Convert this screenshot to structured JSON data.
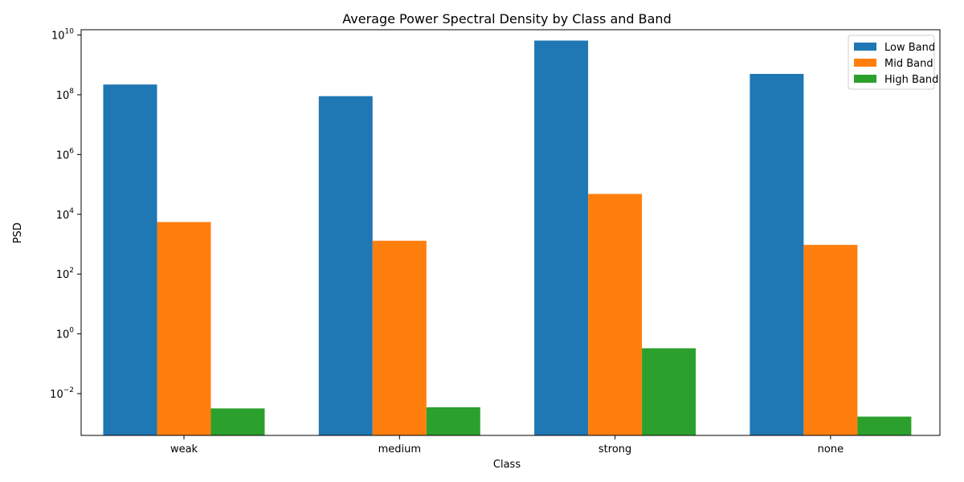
{
  "chart_data": {
    "type": "bar",
    "title": "Average Power Spectral Density by Class and Band",
    "xlabel": "Class",
    "ylabel": "PSD",
    "yscale": "log",
    "ylim": [
      0.0004,
      15000000000
    ],
    "yticks": [
      {
        "value": 0.01,
        "base": "10",
        "exp": "−2"
      },
      {
        "value": 1,
        "base": "10",
        "exp": "0"
      },
      {
        "value": 100,
        "base": "10",
        "exp": "2"
      },
      {
        "value": 10000,
        "base": "10",
        "exp": "4"
      },
      {
        "value": 1000000,
        "base": "10",
        "exp": "6"
      },
      {
        "value": 100000000,
        "base": "10",
        "exp": "8"
      },
      {
        "value": 10000000000,
        "base": "10",
        "exp": "10"
      }
    ],
    "categories": [
      "weak",
      "medium",
      "strong",
      "none"
    ],
    "series": [
      {
        "name": "Low Band",
        "color": "#1f77b4",
        "values": [
          220000000,
          90000000,
          6500000000,
          500000000
        ]
      },
      {
        "name": "Mid Band",
        "color": "#ff7f0e",
        "values": [
          5500,
          1300,
          48000,
          950
        ]
      },
      {
        "name": "High Band",
        "color": "#2ca02c",
        "values": [
          0.0032,
          0.0035,
          0.33,
          0.0017
        ]
      }
    ],
    "legend_position": "top-right",
    "grid": false
  }
}
